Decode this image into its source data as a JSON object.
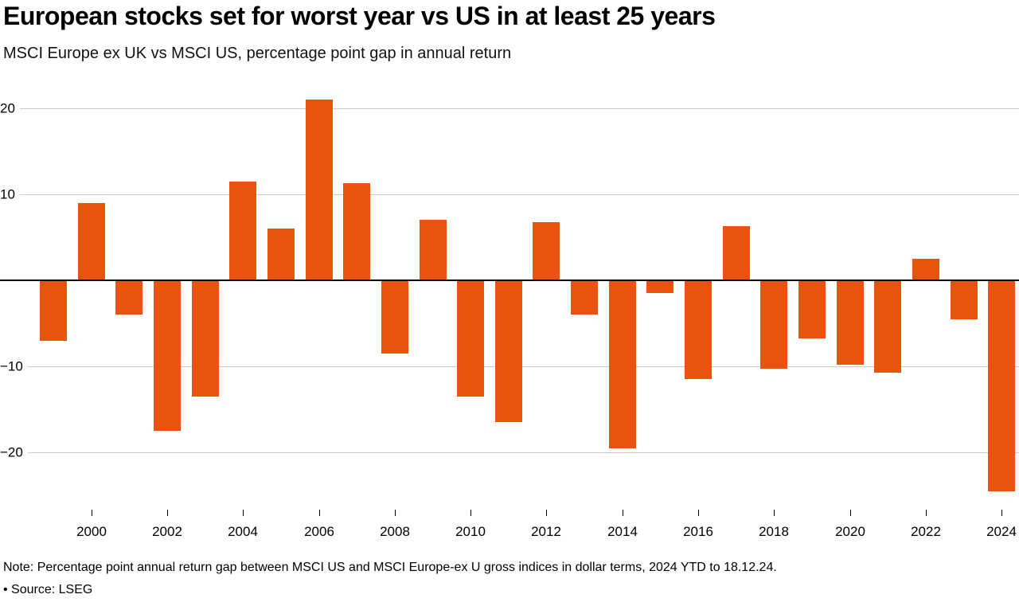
{
  "header": {
    "title": "European stocks set for worst year vs US in at least 25 years",
    "subtitle": "MSCI Europe ex UK vs MSCI US, percentage point gap in annual return"
  },
  "chart_data": {
    "type": "bar",
    "title": "European stocks set for worst year vs US in at least 25 years",
    "subtitle": "MSCI Europe ex UK vs MSCI US, percentage point gap in annual return",
    "categories": [
      1999,
      2000,
      2001,
      2002,
      2003,
      2004,
      2005,
      2006,
      2007,
      2008,
      2009,
      2010,
      2011,
      2012,
      2013,
      2014,
      2015,
      2016,
      2017,
      2018,
      2019,
      2020,
      2021,
      2022,
      2023,
      2024
    ],
    "values": [
      -7,
      9,
      -4,
      -17.5,
      -13.5,
      11.5,
      6,
      21,
      11.3,
      -8.5,
      7,
      -13.5,
      -16.5,
      6.8,
      -4,
      -19.5,
      -1.5,
      -11.5,
      6.3,
      -10.3,
      -6.8,
      -9.8,
      -10.7,
      2.5,
      -4.5,
      -24.5
    ],
    "yticks": [
      20,
      10,
      -10,
      -20
    ],
    "xticks": [
      2000,
      2002,
      2004,
      2006,
      2008,
      2010,
      2012,
      2014,
      2016,
      2018,
      2020,
      2022,
      2024
    ],
    "ylim": [
      -26,
      22
    ],
    "grid": true,
    "bar_color": "#E8540E",
    "gridline_color": "#cccccc",
    "zero_line_color": "#000000",
    "xlabel": "",
    "ylabel": ""
  },
  "footer": {
    "note": "Note: Percentage point annual return gap between MSCI US and MSCI Europe-ex U gross indices in dollar terms, 2024 YTD to 18.12.24.",
    "source": "• Source: LSEG"
  }
}
